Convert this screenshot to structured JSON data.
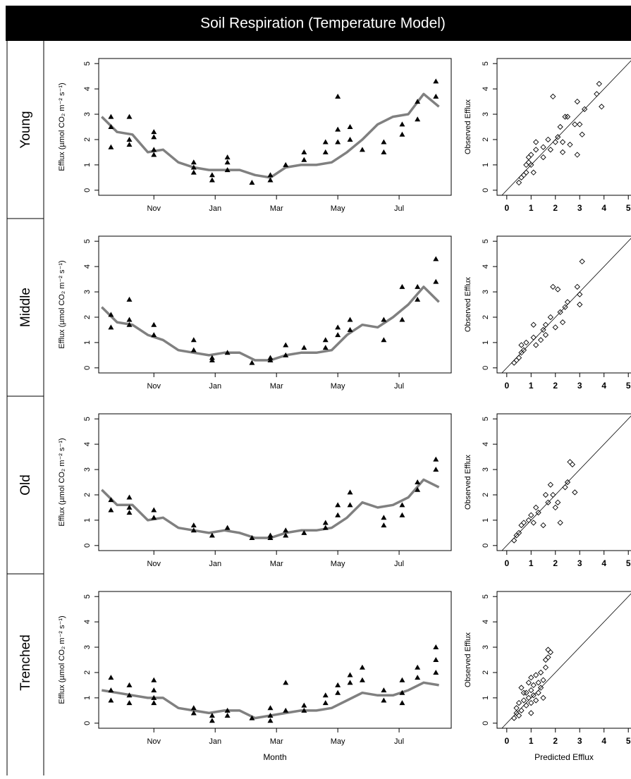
{
  "title": "Soil Respiration (Temperature Model)",
  "row_labels": [
    "Young",
    "Middle",
    "Old",
    "Trenched"
  ],
  "chart_data": [
    {
      "type": "line",
      "ylabel": "Efflux (µmol CO₂ m⁻² s⁻¹)",
      "xlim": [
        0.2,
        11.7
      ],
      "ylim": [
        -0.2,
        5.2
      ],
      "yticks": [
        0,
        1,
        2,
        3,
        4,
        5
      ],
      "xticks": [
        {
          "value": 2,
          "label": "Nov"
        },
        {
          "value": 4,
          "label": "Jan"
        },
        {
          "value": 6,
          "label": "Mar"
        },
        {
          "value": 8,
          "label": "May"
        },
        {
          "value": 10,
          "label": "Jul"
        }
      ],
      "line": {
        "color": "#808080",
        "x": [
          0.3,
          0.8,
          1.3,
          1.8,
          2.3,
          2.8,
          3.3,
          3.8,
          4.3,
          4.8,
          5.3,
          5.8,
          6.3,
          6.8,
          7.3,
          7.8,
          8.3,
          8.8,
          9.3,
          9.8,
          10.3,
          10.8,
          11.3
        ],
        "values": [
          2.9,
          2.3,
          2.2,
          1.5,
          1.6,
          1.1,
          0.9,
          0.8,
          0.8,
          0.8,
          0.6,
          0.5,
          0.9,
          1.0,
          1.0,
          1.1,
          1.5,
          2.0,
          2.6,
          2.9,
          3.0,
          3.8,
          3.3
        ]
      },
      "points": {
        "color": "#000000",
        "x": [
          0.6,
          0.6,
          0.6,
          1.2,
          1.2,
          1.2,
          2.0,
          2.0,
          2.0,
          2.0,
          3.3,
          3.3,
          3.3,
          3.9,
          3.9,
          4.4,
          4.4,
          4.4,
          5.2,
          5.8,
          5.8,
          6.3,
          6.9,
          6.9,
          7.6,
          7.6,
          8.0,
          8.0,
          8.0,
          8.4,
          8.4,
          8.8,
          9.5,
          9.5,
          10.1,
          10.1,
          10.6,
          10.6,
          11.2,
          11.2
        ],
        "values": [
          2.9,
          2.5,
          1.7,
          2.9,
          2.0,
          1.8,
          2.3,
          2.1,
          1.6,
          1.4,
          1.1,
          0.9,
          0.7,
          0.6,
          0.4,
          1.3,
          1.1,
          0.8,
          0.3,
          0.6,
          0.4,
          1.0,
          1.5,
          1.2,
          1.9,
          1.5,
          3.7,
          2.4,
          1.9,
          2.5,
          2.0,
          1.6,
          1.9,
          1.5,
          2.6,
          2.2,
          3.5,
          2.8,
          4.3,
          3.7
        ]
      }
    },
    {
      "type": "scatter",
      "ylabel": "Observed Efflux",
      "color": "#000000",
      "xlim": [
        -0.4,
        5.4
      ],
      "ylim": [
        -0.2,
        5.2
      ],
      "xticks": [
        0,
        1,
        2,
        3,
        4,
        5
      ],
      "yticks": [
        0,
        1,
        2,
        3,
        4,
        5
      ],
      "x": [
        0.5,
        0.6,
        0.7,
        0.8,
        0.8,
        0.9,
        0.9,
        1.0,
        1.0,
        1.1,
        1.2,
        1.2,
        1.5,
        1.5,
        1.7,
        1.8,
        1.9,
        2.0,
        2.1,
        2.2,
        2.3,
        2.3,
        2.4,
        2.5,
        2.6,
        2.8,
        2.9,
        2.9,
        3.0,
        3.1,
        3.2,
        3.7,
        3.8,
        3.9
      ],
      "values": [
        0.3,
        0.5,
        0.6,
        0.7,
        1.0,
        1.1,
        1.3,
        1.0,
        1.4,
        0.7,
        1.6,
        1.9,
        1.3,
        1.7,
        2.0,
        1.6,
        3.7,
        1.9,
        2.1,
        2.5,
        1.9,
        1.5,
        2.9,
        2.9,
        1.8,
        2.6,
        3.5,
        1.4,
        2.6,
        2.2,
        3.2,
        3.8,
        4.2,
        3.3
      ]
    },
    {
      "type": "line",
      "ylabel": "Efflux (µmol CO₂ m⁻² s⁻¹)",
      "xlim": [
        0.2,
        11.7
      ],
      "ylim": [
        -0.2,
        5.2
      ],
      "yticks": [
        0,
        1,
        2,
        3,
        4,
        5
      ],
      "xticks": [
        {
          "value": 2,
          "label": "Nov"
        },
        {
          "value": 4,
          "label": "Jan"
        },
        {
          "value": 6,
          "label": "Mar"
        },
        {
          "value": 8,
          "label": "May"
        },
        {
          "value": 10,
          "label": "Jul"
        }
      ],
      "line": {
        "color": "#808080",
        "x": [
          0.3,
          0.8,
          1.3,
          1.8,
          2.3,
          2.8,
          3.3,
          3.8,
          4.3,
          4.8,
          5.3,
          5.8,
          6.3,
          6.8,
          7.3,
          7.8,
          8.3,
          8.8,
          9.3,
          9.8,
          10.3,
          10.8,
          11.3
        ],
        "values": [
          2.4,
          1.8,
          1.7,
          1.3,
          1.1,
          0.7,
          0.6,
          0.5,
          0.6,
          0.6,
          0.3,
          0.3,
          0.5,
          0.6,
          0.6,
          0.7,
          1.3,
          1.7,
          1.6,
          2.0,
          2.5,
          3.2,
          2.6
        ]
      },
      "points": {
        "color": "#000000",
        "x": [
          0.6,
          0.6,
          1.2,
          1.2,
          1.2,
          2.0,
          2.0,
          3.3,
          3.3,
          3.9,
          3.9,
          4.4,
          5.2,
          5.8,
          5.8,
          6.3,
          6.3,
          6.9,
          7.6,
          7.6,
          8.0,
          8.0,
          8.4,
          8.4,
          9.5,
          9.5,
          10.1,
          10.1,
          10.6,
          10.6,
          11.2,
          11.2
        ],
        "values": [
          2.1,
          1.6,
          2.7,
          1.9,
          1.7,
          1.7,
          1.3,
          1.1,
          0.7,
          0.4,
          0.3,
          0.6,
          0.2,
          0.4,
          0.3,
          0.9,
          0.5,
          0.8,
          1.1,
          0.8,
          1.6,
          1.3,
          1.9,
          1.5,
          1.9,
          1.1,
          3.2,
          1.9,
          3.2,
          2.7,
          4.3,
          3.4
        ]
      }
    },
    {
      "type": "scatter",
      "ylabel": "Observed Efflux",
      "color": "#000000",
      "xlim": [
        -0.4,
        5.4
      ],
      "ylim": [
        -0.2,
        5.2
      ],
      "xticks": [
        0,
        1,
        2,
        3,
        4,
        5
      ],
      "yticks": [
        0,
        1,
        2,
        3,
        4,
        5
      ],
      "x": [
        0.3,
        0.4,
        0.5,
        0.6,
        0.6,
        0.7,
        0.8,
        1.1,
        1.1,
        1.2,
        1.4,
        1.5,
        1.6,
        1.6,
        1.8,
        1.9,
        2.0,
        2.1,
        2.2,
        2.3,
        2.4,
        2.5,
        2.9,
        3.0,
        3.0,
        3.1
      ],
      "values": [
        0.2,
        0.3,
        0.4,
        0.6,
        0.9,
        0.7,
        1.0,
        1.2,
        1.7,
        0.9,
        1.1,
        1.5,
        1.7,
        1.3,
        2.0,
        3.2,
        1.6,
        3.1,
        2.2,
        1.8,
        2.4,
        2.6,
        3.2,
        2.9,
        2.5,
        4.2
      ]
    },
    {
      "type": "line",
      "ylabel": "Efflux (µmol CO₂ m⁻² s⁻¹)",
      "xlim": [
        0.2,
        11.7
      ],
      "ylim": [
        -0.2,
        5.2
      ],
      "yticks": [
        0,
        1,
        2,
        3,
        4,
        5
      ],
      "xticks": [
        {
          "value": 2,
          "label": "Nov"
        },
        {
          "value": 4,
          "label": "Jan"
        },
        {
          "value": 6,
          "label": "Mar"
        },
        {
          "value": 8,
          "label": "May"
        },
        {
          "value": 10,
          "label": "Jul"
        }
      ],
      "line": {
        "color": "#808080",
        "x": [
          0.3,
          0.8,
          1.3,
          1.8,
          2.3,
          2.8,
          3.3,
          3.8,
          4.3,
          4.8,
          5.3,
          5.8,
          6.3,
          6.8,
          7.3,
          7.8,
          8.3,
          8.8,
          9.3,
          9.8,
          10.3,
          10.8,
          11.3
        ],
        "values": [
          2.2,
          1.6,
          1.6,
          1.0,
          1.1,
          0.7,
          0.6,
          0.5,
          0.6,
          0.5,
          0.3,
          0.3,
          0.5,
          0.6,
          0.6,
          0.7,
          1.1,
          1.7,
          1.5,
          1.6,
          1.9,
          2.6,
          2.3
        ]
      },
      "points": {
        "color": "#000000",
        "x": [
          0.6,
          0.6,
          1.2,
          1.2,
          1.2,
          2.0,
          2.0,
          3.3,
          3.3,
          3.9,
          4.4,
          5.2,
          5.8,
          5.8,
          6.3,
          6.3,
          6.9,
          7.6,
          7.6,
          8.0,
          8.0,
          8.4,
          8.4,
          9.5,
          9.5,
          10.1,
          10.1,
          10.6,
          10.6,
          11.2,
          11.2
        ],
        "values": [
          1.8,
          1.4,
          1.9,
          1.5,
          1.3,
          1.4,
          1.1,
          0.8,
          0.6,
          0.4,
          0.7,
          0.3,
          0.4,
          0.3,
          0.6,
          0.4,
          0.5,
          0.9,
          0.7,
          1.6,
          1.2,
          2.1,
          1.6,
          1.1,
          0.8,
          1.6,
          1.2,
          2.5,
          2.2,
          3.4,
          3.0
        ]
      }
    },
    {
      "type": "scatter",
      "ylabel": "Observed Efflux",
      "color": "#000000",
      "xlim": [
        -0.4,
        5.4
      ],
      "ylim": [
        -0.2,
        5.2
      ],
      "xticks": [
        0,
        1,
        2,
        3,
        4,
        5
      ],
      "yticks": [
        0,
        1,
        2,
        3,
        4,
        5
      ],
      "x": [
        0.3,
        0.4,
        0.5,
        0.6,
        0.7,
        0.9,
        1.0,
        1.1,
        1.2,
        1.3,
        1.5,
        1.6,
        1.7,
        1.8,
        1.9,
        2.0,
        2.1,
        2.2,
        2.4,
        2.5,
        2.6,
        2.7,
        2.8
      ],
      "values": [
        0.2,
        0.4,
        0.5,
        0.8,
        0.9,
        1.0,
        1.2,
        0.9,
        1.5,
        1.3,
        0.8,
        2.0,
        1.7,
        2.4,
        2.0,
        1.5,
        1.7,
        0.9,
        2.3,
        2.5,
        3.3,
        3.2,
        2.1
      ]
    },
    {
      "type": "line",
      "ylabel": "Efflux (µmol CO₂ m⁻² s⁻¹)",
      "xlabel": "Month",
      "xlim": [
        0.2,
        11.7
      ],
      "ylim": [
        -0.2,
        5.2
      ],
      "yticks": [
        0,
        1,
        2,
        3,
        4,
        5
      ],
      "xticks": [
        {
          "value": 2,
          "label": "Nov"
        },
        {
          "value": 4,
          "label": "Jan"
        },
        {
          "value": 6,
          "label": "Mar"
        },
        {
          "value": 8,
          "label": "May"
        },
        {
          "value": 10,
          "label": "Jul"
        }
      ],
      "line": {
        "color": "#808080",
        "x": [
          0.3,
          0.8,
          1.3,
          1.8,
          2.3,
          2.8,
          3.3,
          3.8,
          4.3,
          4.8,
          5.3,
          5.8,
          6.3,
          6.8,
          7.3,
          7.8,
          8.3,
          8.8,
          9.3,
          9.8,
          10.3,
          10.8,
          11.3
        ],
        "values": [
          1.3,
          1.2,
          1.1,
          1.0,
          1.0,
          0.6,
          0.5,
          0.4,
          0.5,
          0.5,
          0.2,
          0.3,
          0.4,
          0.5,
          0.5,
          0.6,
          0.9,
          1.2,
          1.1,
          1.1,
          1.3,
          1.6,
          1.5
        ]
      },
      "points": {
        "color": "#000000",
        "x": [
          0.6,
          0.6,
          0.6,
          1.2,
          1.2,
          1.2,
          2.0,
          2.0,
          2.0,
          2.0,
          3.3,
          3.3,
          3.9,
          3.9,
          4.4,
          4.4,
          5.2,
          5.8,
          5.8,
          5.8,
          6.3,
          6.3,
          6.9,
          6.9,
          7.6,
          7.6,
          8.0,
          8.0,
          8.4,
          8.4,
          8.8,
          8.8,
          9.5,
          9.5,
          10.1,
          10.1,
          10.1,
          10.6,
          10.6,
          11.2,
          11.2,
          11.2
        ],
        "values": [
          1.8,
          1.3,
          0.9,
          1.5,
          1.1,
          0.8,
          1.7,
          1.3,
          1.0,
          0.8,
          0.6,
          0.4,
          0.3,
          0.1,
          0.5,
          0.3,
          0.2,
          0.6,
          0.3,
          0.1,
          1.6,
          0.5,
          0.7,
          0.5,
          1.1,
          0.8,
          1.5,
          1.2,
          1.9,
          1.6,
          2.2,
          1.7,
          1.3,
          0.9,
          1.7,
          1.2,
          0.8,
          2.2,
          1.8,
          3.0,
          2.5,
          2.0
        ]
      }
    },
    {
      "type": "scatter",
      "ylabel": "Observed Efflux",
      "xlabel": "Predicted Efflux",
      "color": "#000000",
      "xlim": [
        -0.4,
        5.4
      ],
      "ylim": [
        -0.2,
        5.2
      ],
      "xticks": [
        0,
        1,
        2,
        3,
        4,
        5
      ],
      "yticks": [
        0,
        1,
        2,
        3,
        4,
        5
      ],
      "x": [
        0.3,
        0.4,
        0.4,
        0.5,
        0.5,
        0.6,
        0.6,
        0.7,
        0.8,
        0.8,
        0.9,
        0.9,
        1.0,
        1.0,
        1.0,
        1.1,
        1.1,
        1.2,
        1.2,
        1.3,
        1.3,
        1.4,
        1.4,
        1.5,
        1.5,
        1.6,
        1.6,
        1.7,
        1.7,
        1.8,
        1.0,
        0.7
      ],
      "values": [
        0.2,
        0.4,
        0.6,
        0.3,
        0.8,
        0.5,
        1.4,
        0.9,
        1.2,
        0.7,
        1.6,
        1.0,
        0.8,
        1.3,
        1.8,
        1.1,
        1.5,
        0.9,
        1.9,
        1.2,
        1.6,
        2.0,
        1.4,
        1.7,
        1.0,
        2.2,
        2.5,
        2.9,
        2.6,
        2.8,
        0.4,
        1.2
      ]
    }
  ]
}
